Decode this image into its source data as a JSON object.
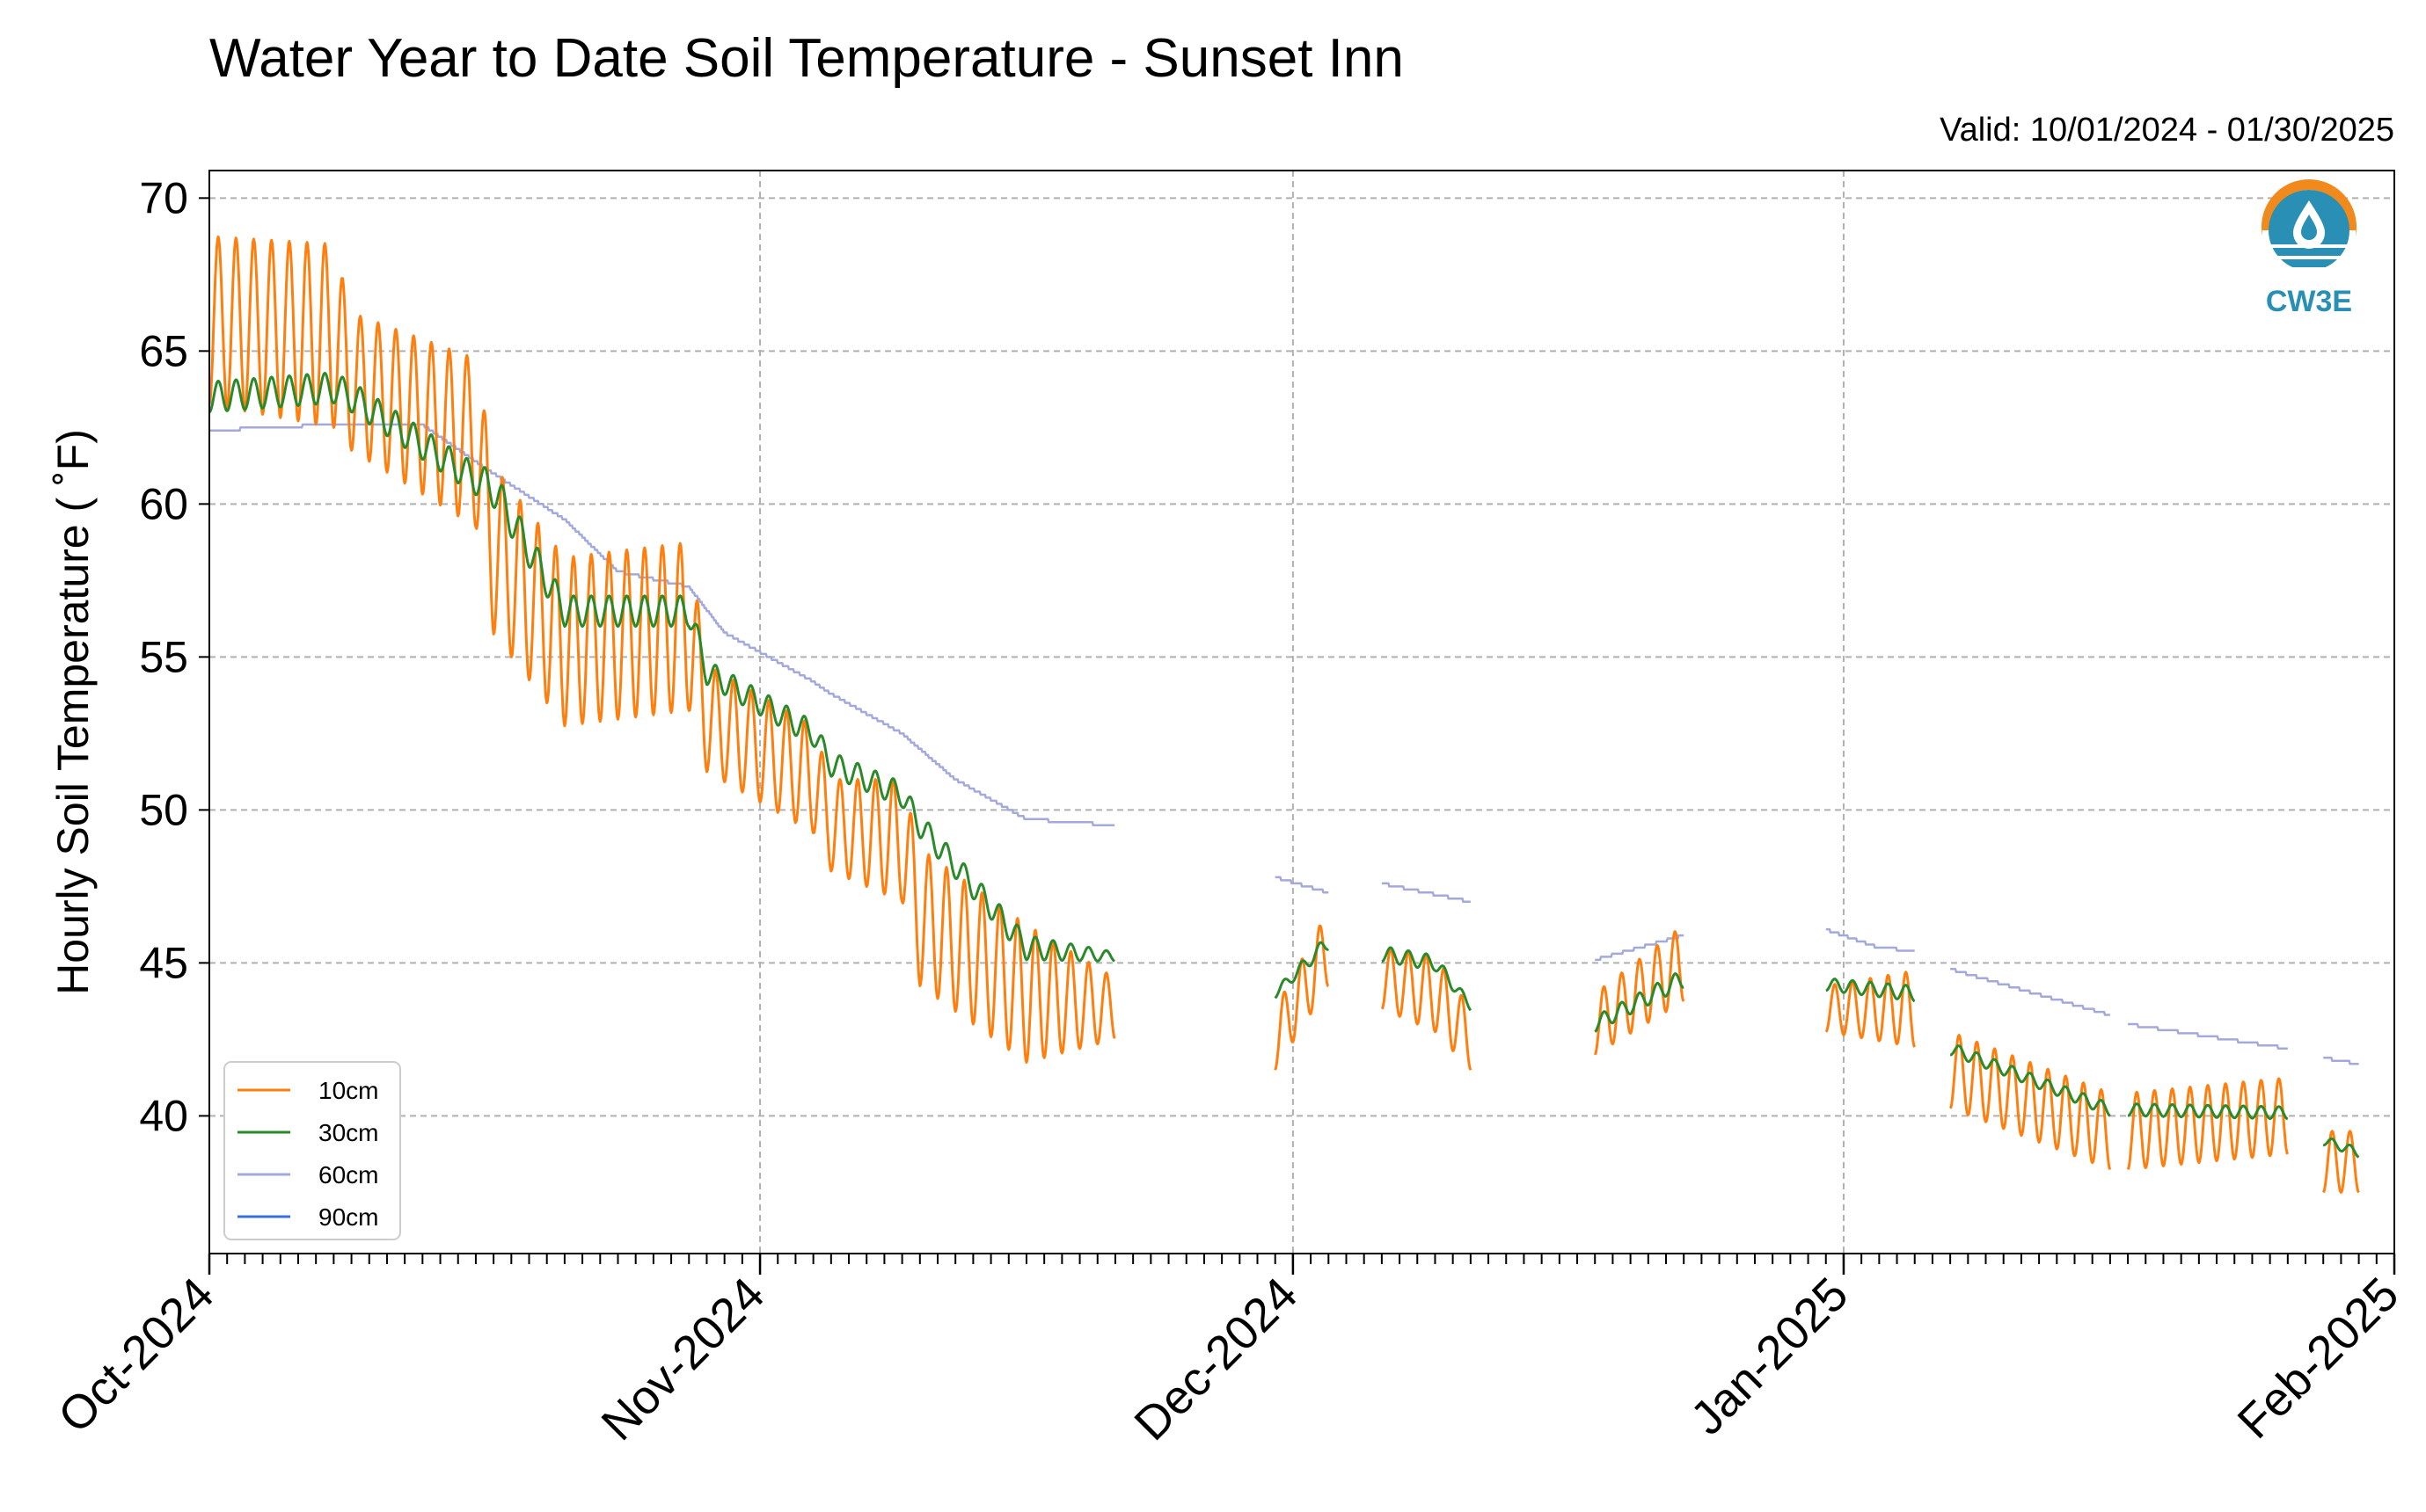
{
  "chart_data": {
    "type": "line",
    "title": "Water Year to Date Soil Temperature - Sunset Inn",
    "subtitle": "Valid: 10/01/2024 - 01/30/2025",
    "xlabel": "",
    "ylabel": "Hourly Soil Temperature ( ˚F)",
    "ylim": [
      35.5,
      70.9
    ],
    "xlim": [
      "2024-10-01",
      "2025-02-01"
    ],
    "yticks": [
      40,
      45,
      50,
      55,
      60,
      65,
      70
    ],
    "yticklabels": [
      "40",
      "45",
      "50",
      "55",
      "60",
      "65",
      "70"
    ],
    "xticks": [
      "2024-10-01",
      "2024-11-01",
      "2024-12-01",
      "2025-01-01",
      "2025-02-01"
    ],
    "xticklabels": [
      "Oct-2024",
      "Nov-2024",
      "Dec-2024",
      "Jan-2025",
      "Feb-2025"
    ],
    "grid": true,
    "legend_position": "lower-left",
    "logo_text": "CW3E",
    "segments": [
      {
        "start": "2024-10-01",
        "end": "2024-11-21"
      },
      {
        "start": "2024-11-30",
        "end": "2024-12-03"
      },
      {
        "start": "2024-12-06",
        "end": "2024-12-11"
      },
      {
        "start": "2024-12-18",
        "end": "2024-12-23"
      },
      {
        "start": "2024-12-31",
        "end": "2025-01-05"
      },
      {
        "start": "2025-01-07",
        "end": "2025-01-16"
      },
      {
        "start": "2025-01-17",
        "end": "2025-01-26"
      },
      {
        "start": "2025-01-28",
        "end": "2025-01-30"
      }
    ],
    "series": [
      {
        "name": "10cm",
        "color": "#ff7f0e",
        "amp_scale": 1.0,
        "points": [
          [
            "2024-10-01",
            66.0,
            5.5
          ],
          [
            "2024-10-08",
            65.5,
            6.0
          ],
          [
            "2024-10-09",
            64.0,
            4.5
          ],
          [
            "2024-10-16",
            62.0,
            5.5
          ],
          [
            "2024-10-17",
            58.5,
            5.5
          ],
          [
            "2024-10-21",
            55.5,
            5.5
          ],
          [
            "2024-10-28",
            56.0,
            5.5
          ],
          [
            "2024-10-29",
            53.0,
            3.5
          ],
          [
            "2024-11-04",
            51.0,
            3.5
          ],
          [
            "2024-11-05",
            49.5,
            3.0
          ],
          [
            "2024-11-09",
            49.0,
            4.0
          ],
          [
            "2024-11-10",
            46.5,
            4.5
          ],
          [
            "2024-11-16",
            44.0,
            4.5
          ],
          [
            "2024-11-21",
            43.5,
            2.0
          ],
          [
            "2024-11-30",
            42.5,
            2.0
          ],
          [
            "2024-12-03",
            45.5,
            2.5
          ],
          [
            "2024-12-06",
            44.5,
            2.0
          ],
          [
            "2024-12-09",
            44.0,
            2.5
          ],
          [
            "2024-12-11",
            42.5,
            2.0
          ],
          [
            "2024-12-18",
            43.0,
            2.0
          ],
          [
            "2024-12-23",
            45.0,
            2.5
          ],
          [
            "2024-12-31",
            43.5,
            1.5
          ],
          [
            "2025-01-05",
            43.5,
            2.5
          ],
          [
            "2025-01-07",
            41.5,
            2.5
          ],
          [
            "2025-01-16",
            39.5,
            2.5
          ],
          [
            "2025-01-17",
            39.5,
            2.5
          ],
          [
            "2025-01-26",
            40.0,
            2.5
          ],
          [
            "2025-01-28",
            38.5,
            2.0
          ],
          [
            "2025-01-30",
            38.5,
            2.0
          ]
        ]
      },
      {
        "name": "30cm",
        "color": "#2a8a2a",
        "amp_scale": 1.0,
        "points": [
          [
            "2024-10-01",
            63.5,
            1.0
          ],
          [
            "2024-10-08",
            63.8,
            1.0
          ],
          [
            "2024-10-09",
            63.5,
            1.0
          ],
          [
            "2024-10-16",
            60.8,
            1.0
          ],
          [
            "2024-10-17",
            60.5,
            1.2
          ],
          [
            "2024-10-21",
            56.5,
            1.0
          ],
          [
            "2024-10-28",
            56.5,
            1.0
          ],
          [
            "2024-10-29",
            54.5,
            0.8
          ],
          [
            "2024-11-04",
            52.5,
            0.8
          ],
          [
            "2024-11-05",
            51.5,
            0.8
          ],
          [
            "2024-11-09",
            50.5,
            0.8
          ],
          [
            "2024-11-10",
            49.5,
            0.8
          ],
          [
            "2024-11-16",
            45.5,
            0.8
          ],
          [
            "2024-11-21",
            45.2,
            0.3
          ],
          [
            "2024-11-30",
            44.0,
            0.3
          ],
          [
            "2024-12-03",
            45.7,
            0.5
          ],
          [
            "2024-12-06",
            45.3,
            0.5
          ],
          [
            "2024-12-09",
            45.0,
            0.5
          ],
          [
            "2024-12-11",
            43.6,
            0.3
          ],
          [
            "2024-12-18",
            43.0,
            0.5
          ],
          [
            "2024-12-23",
            44.5,
            0.6
          ],
          [
            "2024-12-31",
            44.3,
            0.4
          ],
          [
            "2025-01-05",
            44.0,
            0.5
          ],
          [
            "2025-01-07",
            42.2,
            0.4
          ],
          [
            "2025-01-16",
            40.2,
            0.4
          ],
          [
            "2025-01-17",
            40.2,
            0.4
          ],
          [
            "2025-01-26",
            40.1,
            0.4
          ],
          [
            "2025-01-28",
            39.2,
            0.3
          ],
          [
            "2025-01-30",
            38.8,
            0.3
          ]
        ]
      },
      {
        "name": "60cm",
        "color": "#a4a9dc",
        "amp_scale": 0.0,
        "points": [
          [
            "2024-10-01",
            62.4,
            0
          ],
          [
            "2024-10-08",
            62.6,
            0
          ],
          [
            "2024-10-09",
            62.6,
            0
          ],
          [
            "2024-10-13",
            62.6,
            0
          ],
          [
            "2024-10-17",
            61.0,
            0
          ],
          [
            "2024-10-21",
            59.5,
            0
          ],
          [
            "2024-10-24",
            57.8,
            0
          ],
          [
            "2024-10-28",
            57.3,
            0
          ],
          [
            "2024-10-30",
            55.8,
            0
          ],
          [
            "2024-11-04",
            54.2,
            0
          ],
          [
            "2024-11-05",
            53.8,
            0
          ],
          [
            "2024-11-09",
            52.5,
            0
          ],
          [
            "2024-11-12",
            51.0,
            0
          ],
          [
            "2024-11-16",
            49.7,
            0
          ],
          [
            "2024-11-21",
            49.5,
            0
          ],
          [
            "2024-11-30",
            47.8,
            0
          ],
          [
            "2024-12-03",
            47.3,
            0
          ],
          [
            "2024-12-06",
            47.6,
            0
          ],
          [
            "2024-12-11",
            47.0,
            0
          ],
          [
            "2024-12-18",
            45.1,
            0
          ],
          [
            "2024-12-23",
            45.9,
            0
          ],
          [
            "2024-12-31",
            46.1,
            0
          ],
          [
            "2025-01-03",
            45.5,
            0
          ],
          [
            "2025-01-05",
            45.4,
            0
          ],
          [
            "2025-01-07",
            44.8,
            0
          ],
          [
            "2025-01-16",
            43.3,
            0
          ],
          [
            "2025-01-17",
            43.0,
            0
          ],
          [
            "2025-01-26",
            42.2,
            0
          ],
          [
            "2025-01-28",
            41.9,
            0
          ],
          [
            "2025-01-30",
            41.7,
            0
          ]
        ]
      },
      {
        "name": "90cm",
        "color": "#3b6fdf",
        "amp_scale": 0.0,
        "points": []
      }
    ]
  }
}
